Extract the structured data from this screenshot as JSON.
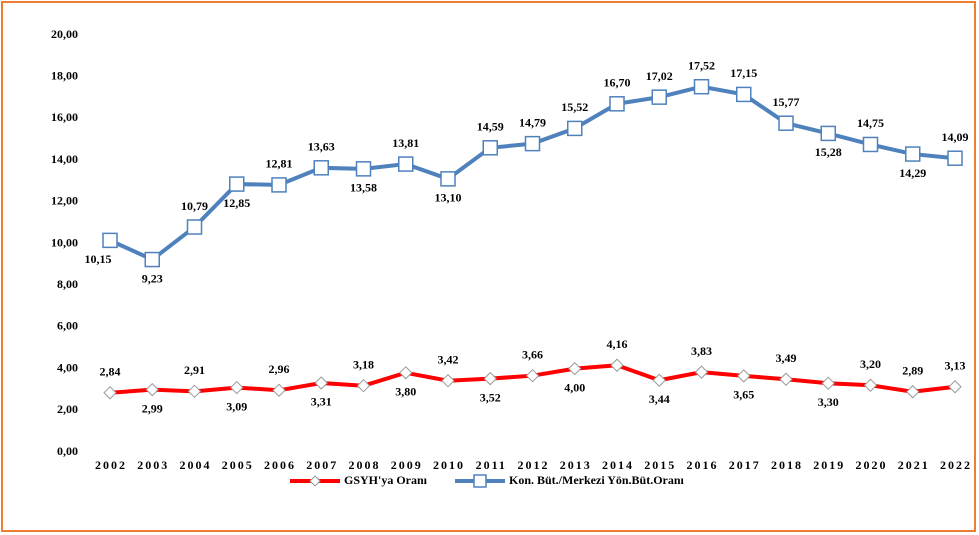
{
  "chart_data": {
    "type": "line",
    "categories": [
      "2002",
      "2003",
      "2004",
      "2005",
      "2006",
      "2007",
      "2008",
      "2009",
      "2010",
      "2011",
      "2012",
      "2013",
      "2014",
      "2015",
      "2016",
      "2017",
      "2018",
      "2019",
      "2020",
      "2021",
      "2022"
    ],
    "series": [
      {
        "name": "GSYH'ya Oranı",
        "color": "#ff0000",
        "marker": "diamond",
        "values": [
          2.84,
          2.99,
          2.91,
          3.09,
          2.96,
          3.31,
          3.18,
          3.8,
          3.42,
          3.52,
          3.66,
          4.0,
          4.16,
          3.44,
          3.83,
          3.65,
          3.49,
          3.3,
          3.2,
          2.89,
          3.13
        ],
        "value_labels": [
          "2,84",
          "2,99",
          "2,91",
          "3,09",
          "2,96",
          "3,31",
          "3,18",
          "3,80",
          "3,42",
          "3,52",
          "3,66",
          "4,00",
          "4,16",
          "3,44",
          "3,83",
          "3,65",
          "3,49",
          "3,30",
          "3,20",
          "2,89",
          "3,13"
        ]
      },
      {
        "name": "Kon. Büt./Merkezi Yön.Büt.Oranı",
        "color": "#4f81bd",
        "marker": "square",
        "values": [
          10.15,
          9.23,
          10.79,
          12.85,
          12.81,
          13.63,
          13.58,
          13.81,
          13.1,
          14.59,
          14.79,
          15.52,
          16.7,
          17.02,
          17.52,
          17.15,
          15.77,
          15.28,
          14.75,
          14.29,
          14.09
        ],
        "value_labels": [
          "10,15",
          "9,23",
          "10,79",
          "12,85",
          "12,81",
          "13,63",
          "13,58",
          "13,81",
          "13,10",
          "14,59",
          "14,79",
          "15,52",
          "16,70",
          "17,02",
          "17,52",
          "17,15",
          "15,77",
          "15,28",
          "14,75",
          "14,29",
          "14,09"
        ]
      }
    ],
    "ylim": [
      0,
      20
    ],
    "yticks": [
      {
        "value": 0,
        "label": "0,00"
      },
      {
        "value": 2,
        "label": "2,00"
      },
      {
        "value": 4,
        "label": "4,00"
      },
      {
        "value": 6,
        "label": "6,00"
      },
      {
        "value": 8,
        "label": "8,00"
      },
      {
        "value": 10,
        "label": "10,00"
      },
      {
        "value": 12,
        "label": "12,00"
      },
      {
        "value": 14,
        "label": "14,00"
      },
      {
        "value": 16,
        "label": "16,00"
      },
      {
        "value": 18,
        "label": "18,00"
      },
      {
        "value": 20,
        "label": "20,00"
      }
    ],
    "grid": false,
    "legend": "bottom"
  }
}
